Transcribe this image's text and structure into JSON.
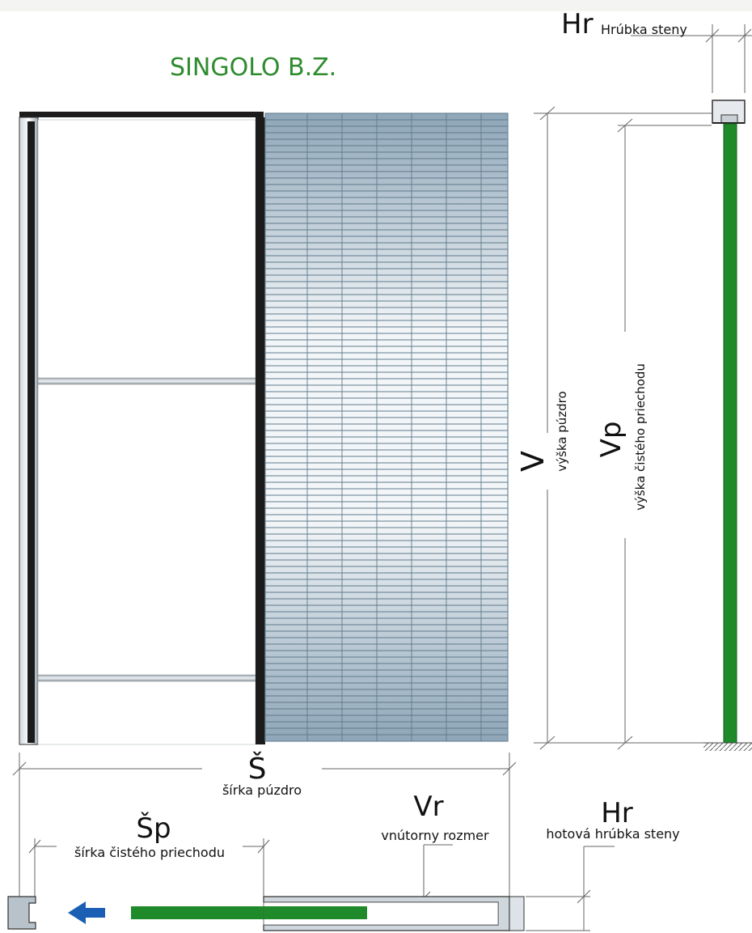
{
  "title": "SINGOLO B.Z.",
  "labels": {
    "hr_top_symbol": "Hr",
    "hr_top_text": "Hrúbka steny",
    "v_symbol": "V",
    "v_text": "výška púzdro",
    "vp_symbol": "Vp",
    "vp_text": "výška čistého priechodu",
    "s_symbol": "Š",
    "s_text": "šírka púzdro",
    "sp_symbol": "Šp",
    "sp_text": "šírka čistého priechodu",
    "vr_symbol": "Vr",
    "vr_text": "vnútorny rozmer",
    "hr_bottom_symbol": "Hr",
    "hr_bottom_text": "hotová hrúbka steny"
  },
  "icons": {
    "arrow": "arrow-left-icon"
  },
  "colors": {
    "title_green": "#2e8b2e",
    "door_green": "#1e8a2a",
    "frame_dark": "#1b1b1b",
    "arrow_blue": "#1a5fb4",
    "mesh_blue": "#a9bccb"
  }
}
